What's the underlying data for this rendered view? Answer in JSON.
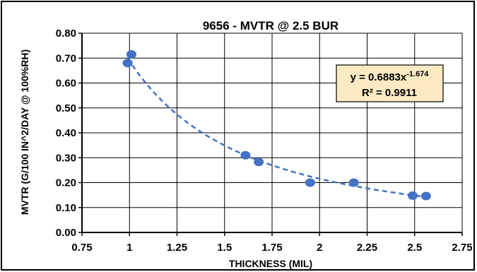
{
  "chart_data": {
    "type": "scatter",
    "title": "9656 - MVTR @ 2.5 BUR",
    "xlabel": "THICKNESS (MIL)",
    "ylabel": "MVTR (G/100 IN^2/DAY @ 100%RH)",
    "xlim": [
      0.75,
      2.75
    ],
    "ylim": [
      0.0,
      0.8
    ],
    "x_ticks": [
      "0.75",
      "1",
      "1.25",
      "1.5",
      "1.75",
      "2",
      "2.25",
      "2.5",
      "2.75"
    ],
    "y_ticks": [
      "0.00",
      "0.10",
      "0.20",
      "0.30",
      "0.40",
      "0.50",
      "0.60",
      "0.70",
      "0.80"
    ],
    "grid": true,
    "series": [
      {
        "points": [
          {
            "x": 0.99,
            "y": 0.68
          },
          {
            "x": 1.01,
            "y": 0.715
          },
          {
            "x": 1.61,
            "y": 0.31
          },
          {
            "x": 1.68,
            "y": 0.283
          },
          {
            "x": 1.95,
            "y": 0.2
          },
          {
            "x": 2.18,
            "y": 0.2
          },
          {
            "x": 2.49,
            "y": 0.148
          },
          {
            "x": 2.56,
            "y": 0.146
          }
        ],
        "color": "#4472C4"
      }
    ],
    "trendline": {
      "type": "power",
      "coefficient": 0.6883,
      "exponent": -1.674,
      "x_range": [
        0.99,
        2.56
      ],
      "color": "#4472C4",
      "style": "dashed"
    },
    "equation_label": {
      "base": "y = 0.6883x",
      "exponent": "-1.674",
      "r2": "R² = 0.9911",
      "background": "#FCEBC2"
    }
  }
}
